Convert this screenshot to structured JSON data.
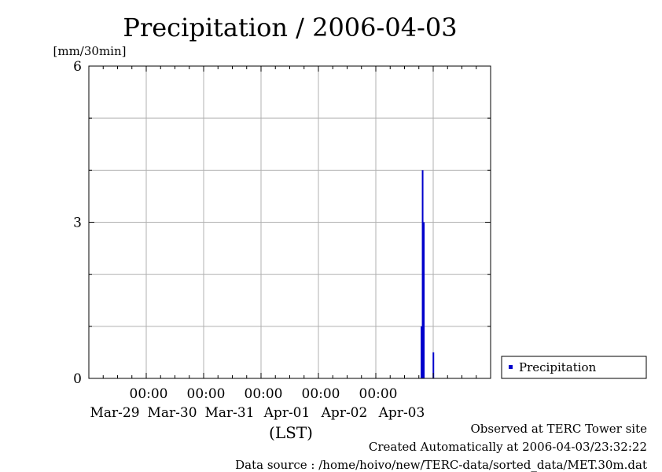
{
  "chart_data": {
    "type": "bar",
    "title": "Precipitation / 2006-04-03",
    "ylabel": "[mm/30min]",
    "xlabel": "(LST)",
    "ylim": [
      0,
      6
    ],
    "yticks": [
      0,
      3,
      6
    ],
    "xlim": [
      "2006-03-28T00:00",
      "2006-04-04T00:00"
    ],
    "xticks": [
      {
        "time": "2006-03-29T00:00",
        "label_time": "00:00",
        "label_date": "Mar-29"
      },
      {
        "time": "2006-03-30T00:00",
        "label_time": "00:00",
        "label_date": "Mar-30"
      },
      {
        "time": "2006-03-31T00:00",
        "label_time": "00:00",
        "label_date": "Mar-31"
      },
      {
        "time": "2006-04-01T00:00",
        "label_time": "00:00",
        "label_date": "Apr-01"
      },
      {
        "time": "2006-04-02T00:00",
        "label_time": "00:00",
        "label_date": "Apr-02"
      },
      {
        "time": "2006-04-03T00:00",
        "label_time": "",
        "label_date": "Apr-03"
      }
    ],
    "grid": true,
    "legend_position": "right",
    "series": [
      {
        "name": "Precipitation",
        "color": "#0000cc",
        "points": [
          {
            "x": "2006-04-02T19:00",
            "y": 1.0
          },
          {
            "x": "2006-04-02T19:30",
            "y": 4.0
          },
          {
            "x": "2006-04-02T20:00",
            "y": 3.0
          },
          {
            "x": "2006-04-03T00:00",
            "y": 0.5
          }
        ]
      }
    ]
  },
  "footer": {
    "line1": "Observed at TERC Tower site",
    "line2": "Created Automatically at 2006-04-03/23:32:22",
    "line3": "Data source : /home/hoivo/new/TERC-data/sorted_data/MET.30m.dat"
  }
}
